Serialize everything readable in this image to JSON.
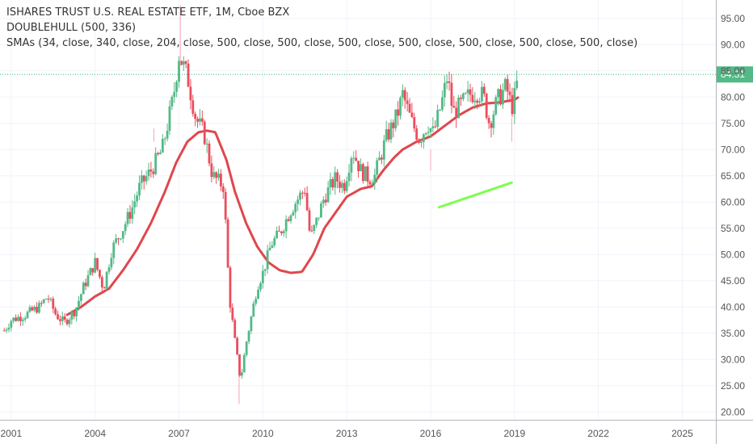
{
  "legend": {
    "title": "ISHARES TRUST U.S. REAL ESTATE ETF, 1M, Cboe BZX",
    "indicator1": "DOUBLEHULL (500, 336)",
    "indicator2": "SMAs (34, close, 340, close, 204, close, 500, close, 500, close, 500, close, 500, close, 500, close, 500, close, 500, close)"
  },
  "colors": {
    "up": "#53b987",
    "down": "#eb4d5c",
    "sma": "#e0474c",
    "hull": "#7cff4f",
    "price_line": "#3cb371",
    "price_label_bg": "#53b987",
    "grid": "#f0f3fa",
    "axis_text": "#555555"
  },
  "chart_data": {
    "type": "candlestick",
    "symbol": "ISHARES TRUST U.S. REAL ESTATE ETF",
    "interval": "1M",
    "exchange": "Cboe BZX",
    "last_price": 84.31,
    "last_price_label": "84.31",
    "y_ticks": [
      "20.00",
      "25.00",
      "30.00",
      "35.00",
      "40.00",
      "45.00",
      "50.00",
      "55.00",
      "60.00",
      "65.00",
      "70.00",
      "75.00",
      "80.00",
      "85.00",
      "90.00",
      "95.00"
    ],
    "ylim": [
      18.5,
      98.5
    ],
    "x_ticks": [
      "2001",
      "2004",
      "2007",
      "2010",
      "2013",
      "2016",
      "2019",
      "2022",
      "2025"
    ],
    "xlim": [
      2000.6,
      2026.2
    ],
    "close_anchors": [
      [
        2000.75,
        35.5
      ],
      [
        2001.0,
        37.5
      ],
      [
        2001.5,
        38.5
      ],
      [
        2002.0,
        40.0
      ],
      [
        2002.3,
        42.0
      ],
      [
        2002.6,
        38.5
      ],
      [
        2002.9,
        37.0
      ],
      [
        2003.3,
        39.5
      ],
      [
        2003.6,
        44.0
      ],
      [
        2004.0,
        48.5
      ],
      [
        2004.3,
        43.5
      ],
      [
        2004.6,
        51.0
      ],
      [
        2005.0,
        55.0
      ],
      [
        2005.3,
        58.5
      ],
      [
        2005.6,
        63.0
      ],
      [
        2006.0,
        66.0
      ],
      [
        2006.4,
        70.0
      ],
      [
        2006.8,
        80.0
      ],
      [
        2007.0,
        88.0
      ],
      [
        2007.3,
        84.0
      ],
      [
        2007.6,
        76.0
      ],
      [
        2007.9,
        73.0
      ],
      [
        2008.2,
        65.0
      ],
      [
        2008.6,
        63.0
      ],
      [
        2008.8,
        42.0
      ],
      [
        2009.0,
        33.5
      ],
      [
        2009.2,
        26.0
      ],
      [
        2009.4,
        33.0
      ],
      [
        2009.8,
        44.0
      ],
      [
        2010.0,
        46.5
      ],
      [
        2010.3,
        52.0
      ],
      [
        2010.6,
        54.0
      ],
      [
        2011.0,
        58.5
      ],
      [
        2011.3,
        61.0
      ],
      [
        2011.5,
        62.5
      ],
      [
        2011.7,
        53.0
      ],
      [
        2011.9,
        56.0
      ],
      [
        2012.2,
        61.0
      ],
      [
        2012.6,
        64.5
      ],
      [
        2012.9,
        63.0
      ],
      [
        2013.2,
        70.0
      ],
      [
        2013.5,
        66.0
      ],
      [
        2013.8,
        64.5
      ],
      [
        2014.0,
        65.0
      ],
      [
        2014.4,
        72.0
      ],
      [
        2014.8,
        76.5
      ],
      [
        2015.0,
        80.5
      ],
      [
        2015.3,
        75.5
      ],
      [
        2015.6,
        72.0
      ],
      [
        2015.9,
        75.0
      ],
      [
        2016.1,
        73.0
      ],
      [
        2016.4,
        79.0
      ],
      [
        2016.6,
        84.0
      ],
      [
        2016.8,
        77.0
      ],
      [
        2017.0,
        78.0
      ],
      [
        2017.4,
        80.5
      ],
      [
        2017.7,
        81.0
      ],
      [
        2017.9,
        80.0
      ],
      [
        2018.1,
        75.0
      ],
      [
        2018.4,
        79.5
      ],
      [
        2018.7,
        82.0
      ],
      [
        2018.9,
        78.0
      ],
      [
        2019.0,
        80.0
      ],
      [
        2019.15,
        84.31
      ]
    ],
    "spikes": [
      {
        "x": 2006.1,
        "low": 71.5,
        "high": 74.0
      },
      {
        "x": 2007.05,
        "low": 86.0,
        "high": 97.5
      },
      {
        "x": 2009.15,
        "low": 21.5,
        "high": 27.0
      },
      {
        "x": 2016.0,
        "low": 66.0,
        "high": 70.0
      },
      {
        "x": 2018.9,
        "low": 71.5,
        "high": 76.0
      }
    ],
    "sma_anchors": [
      [
        2003.0,
        38.5
      ],
      [
        2003.5,
        40.0
      ],
      [
        2004.0,
        42.0
      ],
      [
        2004.5,
        43.5
      ],
      [
        2005.0,
        47.0
      ],
      [
        2005.5,
        51.0
      ],
      [
        2006.0,
        56.0
      ],
      [
        2006.5,
        62.0
      ],
      [
        2006.9,
        67.5
      ],
      [
        2007.3,
        71.5
      ],
      [
        2007.7,
        73.3
      ],
      [
        2008.0,
        73.6
      ],
      [
        2008.3,
        73.3
      ],
      [
        2008.7,
        68.0
      ],
      [
        2009.0,
        62.0
      ],
      [
        2009.4,
        56.0
      ],
      [
        2009.8,
        51.5
      ],
      [
        2010.2,
        48.5
      ],
      [
        2010.6,
        47.0
      ],
      [
        2011.0,
        46.5
      ],
      [
        2011.4,
        46.7
      ],
      [
        2011.8,
        50.0
      ],
      [
        2012.2,
        55.0
      ],
      [
        2012.6,
        58.0
      ],
      [
        2013.0,
        61.0
      ],
      [
        2013.5,
        62.5
      ],
      [
        2013.9,
        63.0
      ],
      [
        2014.3,
        66.0
      ],
      [
        2014.7,
        68.5
      ],
      [
        2015.0,
        70.0
      ],
      [
        2015.5,
        71.5
      ],
      [
        2016.0,
        72.5
      ],
      [
        2016.5,
        74.5
      ],
      [
        2017.0,
        76.5
      ],
      [
        2017.5,
        78.0
      ],
      [
        2018.0,
        78.8
      ],
      [
        2018.5,
        79.0
      ],
      [
        2019.0,
        79.5
      ],
      [
        2019.15,
        80.0
      ]
    ],
    "hull_segment": [
      [
        2016.3,
        59.0
      ],
      [
        2018.9,
        63.7
      ]
    ]
  }
}
